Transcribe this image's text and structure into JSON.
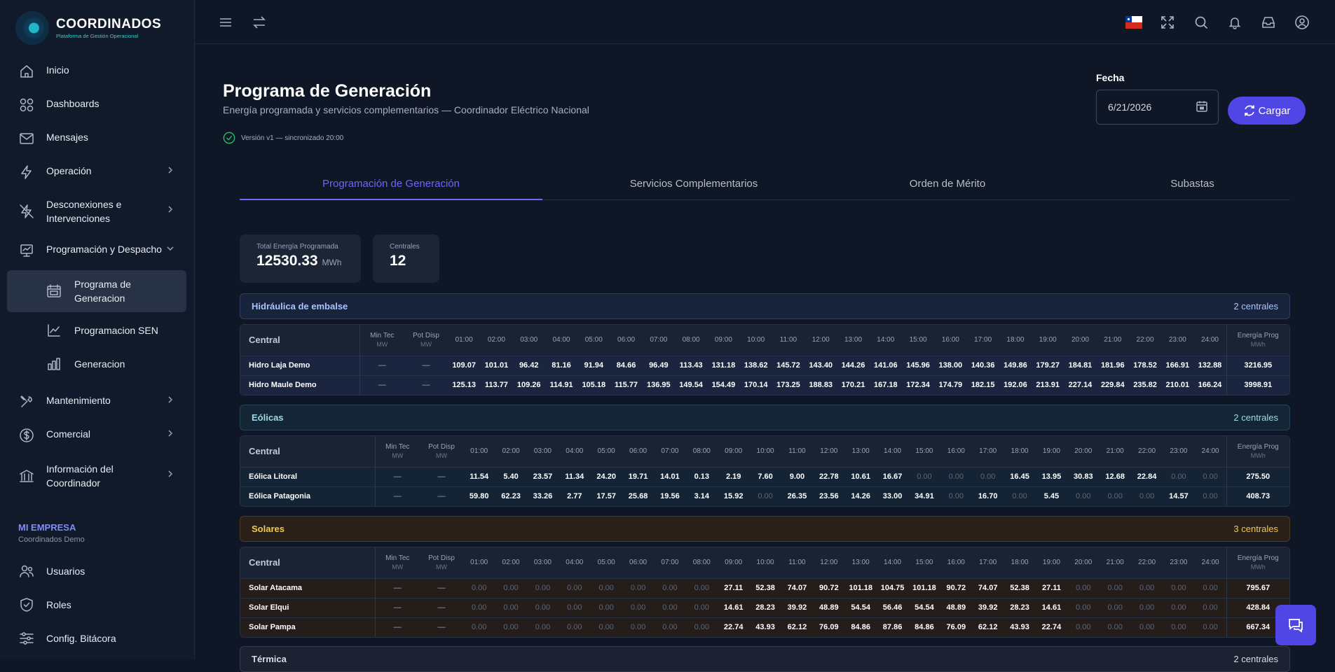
{
  "brand": {
    "title": "COORDINADOS",
    "subtitle": "Plataforma de Gestión Operacional"
  },
  "sidebar": {
    "items": [
      {
        "label": "Inicio",
        "icon": "home-icon"
      },
      {
        "label": "Dashboards",
        "icon": "dashboard-icon"
      },
      {
        "label": "Mensajes",
        "icon": "mail-icon"
      },
      {
        "label": "Operación",
        "icon": "lightning-icon"
      },
      {
        "label": "Desconexiones e Intervenciones",
        "icon": "power-off-icon"
      },
      {
        "label": "Programación y Despacho",
        "icon": "presentation-chart-icon"
      },
      {
        "label": "Mantenimiento",
        "icon": "tools-icon"
      },
      {
        "label": "Comercial",
        "icon": "dollar-icon"
      },
      {
        "label": "Información del Coordinador",
        "icon": "institution-icon"
      }
    ],
    "subitems": [
      {
        "label": "Programa de Generacion",
        "icon": "calendar-chart-icon"
      },
      {
        "label": "Programacion SEN",
        "icon": "line-chart-icon"
      },
      {
        "label": "Generacion",
        "icon": "bar-chart-icon"
      }
    ],
    "company_label": "MI EMPRESA",
    "company_name": "Coordinados Demo",
    "admin_items": [
      {
        "label": "Usuarios",
        "icon": "users-icon"
      },
      {
        "label": "Roles",
        "icon": "shield-icon"
      },
      {
        "label": "Config. Bitácora",
        "icon": "sliders-icon"
      }
    ]
  },
  "page": {
    "title": "Programa de Generación",
    "subtitle": "Energía programada y servicios complementarios — Coordinador Eléctrico Nacional",
    "version": "Versión v1 — sincronizado 20:00",
    "date_label": "Fecha",
    "date_value": "6/21/2026",
    "load_button": "Cargar"
  },
  "tabs": [
    "Programación de Generación",
    "Servicios Complementarios",
    "Orden de Mérito",
    "Subastas"
  ],
  "stats": {
    "total_label": "Total Energía Programada",
    "total_value": "12530.33",
    "total_unit": "MWh",
    "plants_label": "Centrales",
    "plants_value": "12"
  },
  "table_headers": {
    "central": "Central",
    "min_tec": "Min Tec",
    "pot_disp": "Pot Disp",
    "unit_mw": "MW",
    "energia": "Energía Prog",
    "unit_mwh": "MWh",
    "hours": [
      "01:00",
      "02:00",
      "03:00",
      "04:00",
      "05:00",
      "06:00",
      "07:00",
      "08:00",
      "09:00",
      "10:00",
      "11:00",
      "12:00",
      "13:00",
      "14:00",
      "15:00",
      "16:00",
      "17:00",
      "18:00",
      "19:00",
      "20:00",
      "21:00",
      "22:00",
      "23:00",
      "24:00"
    ]
  },
  "groups": [
    {
      "name": "Hidráulica de embalse",
      "count": "2 centrales",
      "colors": {
        "bg": "#18233c",
        "border": "#2c3c63",
        "text": "#a9c4ff",
        "row": "#1b2540"
      },
      "rows": [
        {
          "name": "Hidro Laja Demo",
          "min": "—",
          "pot": "—",
          "values": [
            "109.07",
            "101.01",
            "96.42",
            "81.16",
            "91.94",
            "84.66",
            "96.49",
            "113.43",
            "131.18",
            "138.62",
            "145.72",
            "143.40",
            "144.26",
            "141.06",
            "145.96",
            "138.00",
            "140.36",
            "149.86",
            "179.27",
            "184.81",
            "181.96",
            "178.52",
            "166.91",
            "132.88"
          ],
          "total": "3216.95"
        },
        {
          "name": "Hidro Maule Demo",
          "min": "—",
          "pot": "—",
          "values": [
            "125.13",
            "113.77",
            "109.26",
            "114.91",
            "105.18",
            "115.77",
            "136.95",
            "149.54",
            "154.49",
            "170.14",
            "173.25",
            "188.83",
            "170.21",
            "167.18",
            "172.34",
            "174.79",
            "182.15",
            "192.06",
            "213.91",
            "227.14",
            "229.84",
            "235.82",
            "210.01",
            "166.24"
          ],
          "total": "3998.91"
        }
      ]
    },
    {
      "name": "Eólicas",
      "count": "2 centrales",
      "colors": {
        "bg": "#142636",
        "border": "#244258",
        "text": "#9fd8e8",
        "row": "#142434"
      },
      "rows": [
        {
          "name": "Eólica Litoral",
          "min": "—",
          "pot": "—",
          "values": [
            "11.54",
            "5.40",
            "23.57",
            "11.34",
            "24.20",
            "19.71",
            "14.01",
            "0.13",
            "2.19",
            "7.60",
            "9.00",
            "22.78",
            "10.61",
            "16.67",
            "0.00",
            "0.00",
            "0.00",
            "16.45",
            "13.95",
            "30.83",
            "12.68",
            "22.84",
            "0.00",
            "0.00"
          ],
          "total": "275.50"
        },
        {
          "name": "Eólica Patagonia",
          "min": "—",
          "pot": "—",
          "values": [
            "59.80",
            "62.23",
            "33.26",
            "2.77",
            "17.57",
            "25.68",
            "19.56",
            "3.14",
            "15.92",
            "0.00",
            "26.35",
            "23.56",
            "14.26",
            "33.00",
            "34.91",
            "0.00",
            "16.70",
            "0.00",
            "5.45",
            "0.00",
            "0.00",
            "0.00",
            "14.57",
            "0.00"
          ],
          "total": "408.73"
        }
      ]
    },
    {
      "name": "Solares",
      "count": "3 centrales",
      "colors": {
        "bg": "#2a2019",
        "border": "#4d3a22",
        "text": "#f2c94c",
        "row": "#241d1a"
      },
      "rows": [
        {
          "name": "Solar Atacama",
          "min": "—",
          "pot": "—",
          "values": [
            "0.00",
            "0.00",
            "0.00",
            "0.00",
            "0.00",
            "0.00",
            "0.00",
            "0.00",
            "27.11",
            "52.38",
            "74.07",
            "90.72",
            "101.18",
            "104.75",
            "101.18",
            "90.72",
            "74.07",
            "52.38",
            "27.11",
            "0.00",
            "0.00",
            "0.00",
            "0.00",
            "0.00"
          ],
          "total": "795.67"
        },
        {
          "name": "Solar Elqui",
          "min": "—",
          "pot": "—",
          "values": [
            "0.00",
            "0.00",
            "0.00",
            "0.00",
            "0.00",
            "0.00",
            "0.00",
            "0.00",
            "14.61",
            "28.23",
            "39.92",
            "48.89",
            "54.54",
            "56.46",
            "54.54",
            "48.89",
            "39.92",
            "28.23",
            "14.61",
            "0.00",
            "0.00",
            "0.00",
            "0.00",
            "0.00"
          ],
          "total": "428.84"
        },
        {
          "name": "Solar Pampa",
          "min": "—",
          "pot": "—",
          "values": [
            "0.00",
            "0.00",
            "0.00",
            "0.00",
            "0.00",
            "0.00",
            "0.00",
            "0.00",
            "22.74",
            "43.93",
            "62.12",
            "76.09",
            "84.86",
            "87.86",
            "84.86",
            "76.09",
            "62.12",
            "43.93",
            "22.74",
            "0.00",
            "0.00",
            "0.00",
            "0.00",
            "0.00"
          ],
          "total": "667.34"
        }
      ]
    },
    {
      "name": "Térmica",
      "count": "2 centrales",
      "colors": {
        "bg": "#1c2232",
        "border": "#2f3a52",
        "text": "#d7dce6",
        "row": "#1a2030"
      },
      "rows": []
    }
  ]
}
